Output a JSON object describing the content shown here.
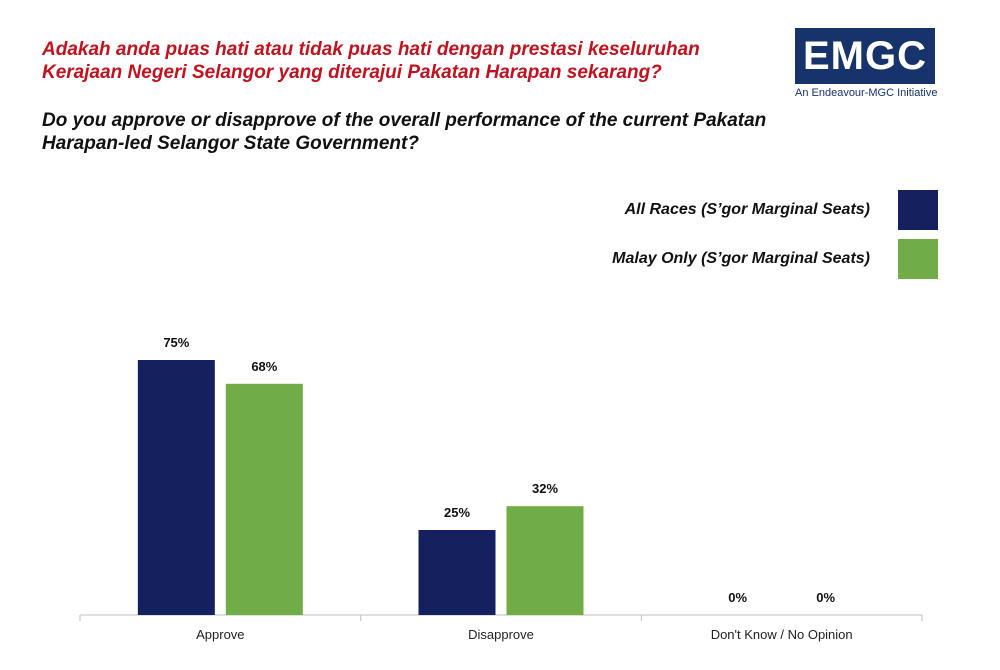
{
  "title_malay": "Adakah anda puas hati atau tidak puas hati dengan prestasi keseluruhan Kerajaan Negeri Selangor yang diterajui Pakatan Harapan sekarang?",
  "title_english": "Do you approve or disapprove of the overall performance of the current Pakatan Harapan-led Selangor State Government?",
  "logo": {
    "text": "EMGC",
    "subtitle": "An Endeavour-MGC Initiative",
    "color": "#17336b"
  },
  "chart_data": {
    "type": "bar",
    "categories": [
      "Approve",
      "Disapprove",
      "Don't Know / No Opinion"
    ],
    "series": [
      {
        "name": "All Races (S’gor Marginal Seats)",
        "values": [
          75,
          25,
          0
        ],
        "labels": [
          "75%",
          "25%",
          "0%"
        ],
        "color": "#15215f"
      },
      {
        "name": "Malay Only (S’gor Marginal Seats)",
        "values": [
          68,
          32,
          0
        ],
        "labels": [
          "68%",
          "32%",
          "0%"
        ],
        "color": "#70ad47"
      }
    ],
    "title": "",
    "xlabel": "",
    "ylabel": "",
    "ylim": [
      0,
      100
    ],
    "grid": false,
    "legend_position": "top-right"
  }
}
